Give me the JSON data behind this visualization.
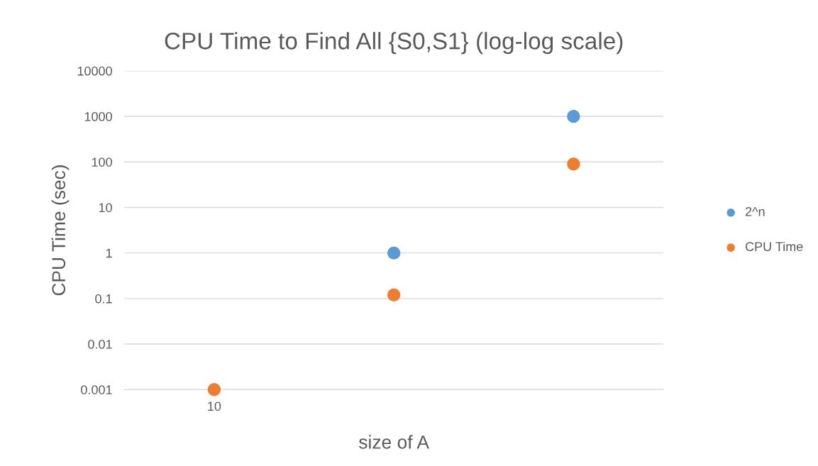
{
  "chart_data": {
    "type": "scatter",
    "title": "CPU Time to Find All {S0,S1} (log-log scale)",
    "xlabel": "size of A",
    "ylabel": "CPU Time (sec)",
    "categories": [
      "10",
      null,
      null
    ],
    "series": [
      {
        "name": "2^n",
        "color": "#5b9bd5",
        "values": [
          null,
          1,
          1000
        ]
      },
      {
        "name": "CPU Time",
        "color": "#ed7d31",
        "values": [
          0.001,
          0.12,
          90
        ]
      }
    ],
    "log": "y",
    "ylim": [
      0.001,
      10000
    ],
    "yticks": [
      0.001,
      0.01,
      0.1,
      1,
      10,
      100,
      1000,
      10000
    ],
    "grid": "y",
    "legend": "right",
    "marker": "circle"
  }
}
